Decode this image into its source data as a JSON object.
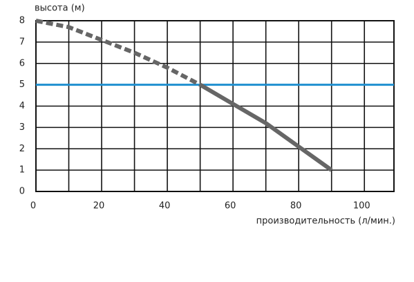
{
  "chart_data": {
    "type": "line",
    "y_label": "высота (м)",
    "x_label": "производительность (л/мин.)",
    "x": [
      0,
      10,
      20,
      30,
      40,
      50,
      60,
      70,
      80,
      90
    ],
    "series": [
      {
        "color": "#666666",
        "dashed": true,
        "values": [
          8,
          7.7,
          7.1,
          6.5,
          5.8,
          5.0,
          null,
          null,
          null,
          null
        ]
      },
      {
        "color": "#666666",
        "dashed": false,
        "values": [
          null,
          null,
          null,
          null,
          null,
          5.0,
          4.1,
          3.2,
          2.1,
          1.0
        ]
      }
    ],
    "hline": {
      "value": 5,
      "color": "#1e8fd0"
    },
    "xlim": [
      0,
      109
    ],
    "ylim": [
      0,
      8
    ],
    "xticks": [
      0,
      20,
      40,
      60,
      80,
      100
    ],
    "xgrid_minor": [
      10,
      30,
      50,
      70,
      90
    ],
    "yticks": [
      0,
      1,
      2,
      3,
      4,
      5,
      6,
      7,
      8
    ],
    "grid": true
  }
}
